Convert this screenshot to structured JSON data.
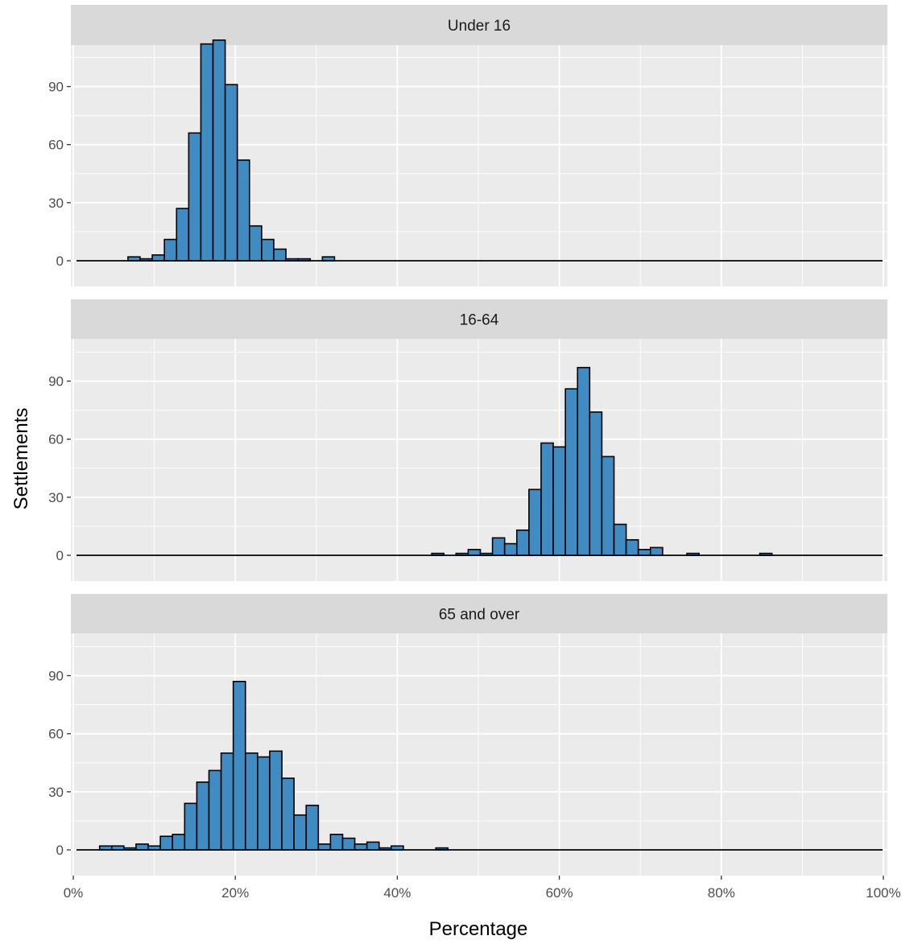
{
  "chart_data": {
    "type": "bar",
    "subtype": "faceted-histogram",
    "xlabel": "Percentage",
    "ylabel": "Settlements",
    "x_ticks": [
      "0%",
      "20%",
      "40%",
      "60%",
      "80%",
      "100%"
    ],
    "y_ticks": [
      "0",
      "30",
      "60",
      "90"
    ],
    "xlim": [
      0,
      100
    ],
    "ylim": [
      0,
      120
    ],
    "bin_width": 1.5,
    "grid": true,
    "legend": "none",
    "colors": {
      "bar_fill": "#3f8bc2",
      "bar_stroke": "#000000",
      "panel_bg": "#ebebeb",
      "strip_bg": "#d9d9d9",
      "grid": "#ffffff"
    },
    "facets": [
      {
        "title": "Under 16",
        "bars": [
          {
            "x": 7.5,
            "count": 2
          },
          {
            "x": 9.0,
            "count": 1
          },
          {
            "x": 10.5,
            "count": 3
          },
          {
            "x": 12.0,
            "count": 11
          },
          {
            "x": 13.5,
            "count": 27
          },
          {
            "x": 15.0,
            "count": 66
          },
          {
            "x": 16.5,
            "count": 112
          },
          {
            "x": 18.0,
            "count": 114
          },
          {
            "x": 19.5,
            "count": 91
          },
          {
            "x": 21.0,
            "count": 52
          },
          {
            "x": 22.5,
            "count": 18
          },
          {
            "x": 24.0,
            "count": 11
          },
          {
            "x": 25.5,
            "count": 6
          },
          {
            "x": 27.0,
            "count": 1
          },
          {
            "x": 28.5,
            "count": 1
          },
          {
            "x": 31.5,
            "count": 2
          }
        ]
      },
      {
        "title": "16-64",
        "bars": [
          {
            "x": 45.0,
            "count": 1
          },
          {
            "x": 48.0,
            "count": 1
          },
          {
            "x": 49.5,
            "count": 3
          },
          {
            "x": 51.0,
            "count": 1
          },
          {
            "x": 52.5,
            "count": 9
          },
          {
            "x": 54.0,
            "count": 6
          },
          {
            "x": 55.5,
            "count": 13
          },
          {
            "x": 57.0,
            "count": 34
          },
          {
            "x": 58.5,
            "count": 58
          },
          {
            "x": 60.0,
            "count": 56
          },
          {
            "x": 61.5,
            "count": 86
          },
          {
            "x": 63.0,
            "count": 97
          },
          {
            "x": 64.5,
            "count": 74
          },
          {
            "x": 66.0,
            "count": 51
          },
          {
            "x": 67.5,
            "count": 16
          },
          {
            "x": 69.0,
            "count": 8
          },
          {
            "x": 70.5,
            "count": 3
          },
          {
            "x": 72.0,
            "count": 4
          },
          {
            "x": 76.5,
            "count": 1
          },
          {
            "x": 85.5,
            "count": 1
          }
        ]
      },
      {
        "title": "65 and over",
        "bars": [
          {
            "x": 4.0,
            "count": 2
          },
          {
            "x": 5.5,
            "count": 2
          },
          {
            "x": 7.0,
            "count": 1
          },
          {
            "x": 8.5,
            "count": 3
          },
          {
            "x": 10.0,
            "count": 2
          },
          {
            "x": 11.5,
            "count": 7
          },
          {
            "x": 13.0,
            "count": 8
          },
          {
            "x": 14.5,
            "count": 24
          },
          {
            "x": 16.0,
            "count": 35
          },
          {
            "x": 17.5,
            "count": 41
          },
          {
            "x": 19.0,
            "count": 50
          },
          {
            "x": 20.5,
            "count": 87
          },
          {
            "x": 22.0,
            "count": 50
          },
          {
            "x": 23.5,
            "count": 48
          },
          {
            "x": 25.0,
            "count": 51
          },
          {
            "x": 26.5,
            "count": 37
          },
          {
            "x": 28.0,
            "count": 18
          },
          {
            "x": 29.5,
            "count": 23
          },
          {
            "x": 31.0,
            "count": 3
          },
          {
            "x": 32.5,
            "count": 8
          },
          {
            "x": 34.0,
            "count": 6
          },
          {
            "x": 35.5,
            "count": 3
          },
          {
            "x": 37.0,
            "count": 4
          },
          {
            "x": 38.5,
            "count": 1
          },
          {
            "x": 40.0,
            "count": 2
          },
          {
            "x": 45.5,
            "count": 1
          }
        ]
      }
    ]
  }
}
